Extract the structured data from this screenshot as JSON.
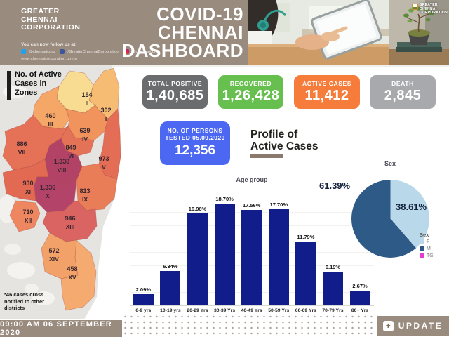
{
  "header": {
    "org_lines": [
      "GREATER",
      "CHENNAI",
      "CORPORATION"
    ],
    "follow_text": "You can now follow us at:",
    "social": {
      "twitter": "@chennaicorp",
      "facebook": "/GreaterChennaiCorporation",
      "instagram": "@chennaicorp",
      "website": "www.chennaicorporation.gov.in"
    },
    "title_lines": [
      "COVID-19",
      "CHENNAI",
      "DASHBOARD"
    ],
    "logo_overlay_lines": [
      "GREATER",
      "CHENNAI",
      "CORPORATION"
    ]
  },
  "stats": [
    {
      "label": "TOTAL POSITIVE",
      "value": "1,40,685",
      "color": "#6b6c6e"
    },
    {
      "label": "RECOVERED",
      "value": "1,26,428",
      "color": "#67bf4f"
    },
    {
      "label": "ACTIVE CASES",
      "value": "11,412",
      "color": "#f57c3a"
    },
    {
      "label": "DEATH",
      "value": "2,845",
      "color": "#a8a9ad"
    }
  ],
  "tested_card": {
    "line1": "NO. OF PERSONS",
    "line2": "TESTED 05.09.2020",
    "value": "12,356",
    "color": "#4c67f2"
  },
  "profile_heading": {
    "line1": "Profile of",
    "line2": "Active Cases"
  },
  "map": {
    "heading_lines": [
      "No. of Active",
      "Cases in",
      "Zones"
    ],
    "note_lines": [
      "*46 cases cross",
      "notified to other",
      "districts"
    ],
    "zones": [
      {
        "numeral": "I",
        "value": "302",
        "color": "#f7bc74"
      },
      {
        "numeral": "II",
        "value": "154",
        "color": "#f8dc92"
      },
      {
        "numeral": "III",
        "value": "460",
        "color": "#f5a768"
      },
      {
        "numeral": "IV",
        "value": "639",
        "color": "#f0935c"
      },
      {
        "numeral": "V",
        "value": "973",
        "color": "#e36d55"
      },
      {
        "numeral": "VI",
        "value": "849",
        "color": "#e47257"
      },
      {
        "numeral": "VII",
        "value": "886",
        "color": "#e57156"
      },
      {
        "numeral": "VIII",
        "value": "1,338",
        "color": "#b24367"
      },
      {
        "numeral": "IX",
        "value": "813",
        "color": "#e87d58"
      },
      {
        "numeral": "X",
        "value": "1,336",
        "color": "#b4436a"
      },
      {
        "numeral": "XI",
        "value": "930",
        "color": "#e26952"
      },
      {
        "numeral": "XII",
        "value": "710",
        "color": "#ee8660"
      },
      {
        "numeral": "XIII",
        "value": "946",
        "color": "#d96462"
      },
      {
        "numeral": "XIV",
        "value": "572",
        "color": "#f2a169"
      },
      {
        "numeral": "XV",
        "value": "458",
        "color": "#f5ab70"
      }
    ]
  },
  "chart_data": [
    {
      "type": "bar",
      "title": "Age group",
      "categories": [
        "0-9 yrs",
        "10-19 yrs",
        "20-29 Yrs",
        "30-39 Yrs",
        "40-49 Yrs",
        "50-59 Yrs",
        "60-69 Yrs",
        "70-79 Yrs",
        "80+ Yrs"
      ],
      "values": [
        2.09,
        6.34,
        16.96,
        18.7,
        17.56,
        17.7,
        11.79,
        6.19,
        2.67
      ],
      "value_labels": [
        "2.09%",
        "6.34%",
        "16.96%",
        "18.70%",
        "17.56%",
        "17.70%",
        "11.79%",
        "6.19%",
        "2.67%"
      ],
      "bar_color": "#101d8a",
      "xlabel": "",
      "ylabel": "",
      "ylim": [
        0,
        20
      ],
      "grid": "faint-horizontal",
      "legend_position": "none"
    },
    {
      "type": "pie",
      "title": "Sex",
      "legend_title": "Sex",
      "legend_position": "bottom-right",
      "slices": [
        {
          "label": "F",
          "value": 38.61,
          "display": "38.61%",
          "color": "#b9d8ea"
        },
        {
          "label": "M",
          "value": 61.39,
          "display": "61.39%",
          "color": "#2d5a87"
        },
        {
          "label": "TG",
          "value": 0,
          "display": "",
          "color": "#e83bd0"
        }
      ],
      "start_angle": "12-oclock-clockwise"
    }
  ],
  "footer": {
    "timestamp": "09:00 AM 06 SEPTEMBER 2020",
    "update_label": "UPDATE"
  },
  "theme": {
    "taupe": "#9a8b7f",
    "taupe_dark": "#8a7a6e",
    "nav_blue": "#101d8a"
  }
}
